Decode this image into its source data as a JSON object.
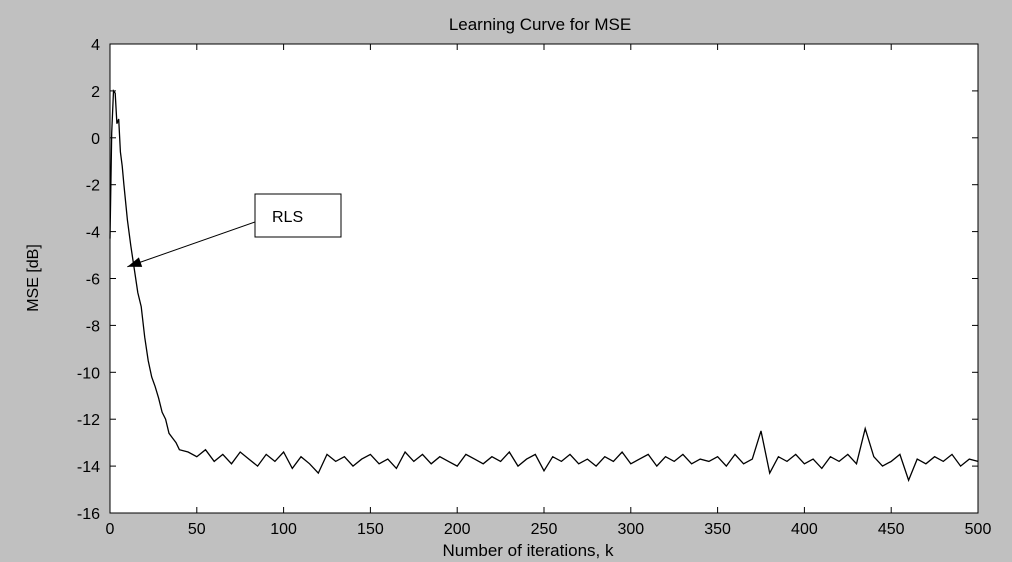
{
  "figure": {
    "background_color": "#c0c0c0",
    "axes_color": "#ffffff",
    "line_color": "#000000"
  },
  "chart_data": {
    "type": "line",
    "title": "Learning Curve for MSE",
    "xlabel": "Number of iterations, k",
    "ylabel": "MSE [dB]",
    "xlim": [
      0,
      500
    ],
    "ylim": [
      -16,
      4
    ],
    "xticks": [
      0,
      50,
      100,
      150,
      200,
      250,
      300,
      350,
      400,
      450,
      500
    ],
    "yticks": [
      4,
      2,
      0,
      -2,
      -4,
      -6,
      -8,
      -10,
      -12,
      -14,
      -16
    ],
    "grid": false,
    "series": [
      {
        "name": "RLS",
        "x": [
          0,
          1,
          2,
          3,
          4,
          5,
          6,
          7,
          8,
          10,
          12,
          14,
          16,
          18,
          20,
          22,
          24,
          26,
          28,
          30,
          32,
          34,
          36,
          38,
          40,
          45,
          50,
          55,
          60,
          65,
          70,
          75,
          80,
          85,
          90,
          95,
          100,
          105,
          110,
          115,
          120,
          125,
          130,
          135,
          140,
          145,
          150,
          155,
          160,
          165,
          170,
          175,
          180,
          185,
          190,
          195,
          200,
          205,
          210,
          215,
          220,
          225,
          230,
          235,
          240,
          245,
          250,
          255,
          260,
          265,
          270,
          275,
          280,
          285,
          290,
          295,
          300,
          305,
          310,
          315,
          320,
          325,
          330,
          335,
          340,
          345,
          350,
          355,
          360,
          365,
          370,
          375,
          380,
          385,
          390,
          395,
          400,
          405,
          410,
          415,
          420,
          425,
          430,
          435,
          440,
          445,
          450,
          455,
          460,
          465,
          470,
          475,
          480,
          485,
          490,
          495,
          500
        ],
        "y": [
          -4.3,
          0.2,
          2.0,
          1.9,
          0.6,
          0.8,
          -0.6,
          -1.2,
          -2.0,
          -3.5,
          -4.6,
          -5.6,
          -6.6,
          -7.2,
          -8.5,
          -9.5,
          -10.2,
          -10.6,
          -11.1,
          -11.7,
          -12.0,
          -12.6,
          -12.8,
          -13.0,
          -13.3,
          -13.4,
          -13.6,
          -13.3,
          -13.8,
          -13.5,
          -13.9,
          -13.4,
          -13.7,
          -14.0,
          -13.5,
          -13.8,
          -13.4,
          -14.1,
          -13.6,
          -13.9,
          -14.3,
          -13.5,
          -13.8,
          -13.6,
          -14.0,
          -13.7,
          -13.5,
          -13.9,
          -13.7,
          -14.1,
          -13.4,
          -13.8,
          -13.5,
          -13.9,
          -13.6,
          -13.8,
          -14.0,
          -13.5,
          -13.7,
          -13.9,
          -13.6,
          -13.8,
          -13.4,
          -14.0,
          -13.7,
          -13.5,
          -14.2,
          -13.6,
          -13.8,
          -13.5,
          -13.9,
          -13.7,
          -14.0,
          -13.6,
          -13.8,
          -13.4,
          -13.9,
          -13.7,
          -13.5,
          -14.0,
          -13.6,
          -13.8,
          -13.5,
          -13.9,
          -13.7,
          -13.8,
          -13.6,
          -14.0,
          -13.5,
          -13.9,
          -13.7,
          -12.5,
          -14.3,
          -13.6,
          -13.8,
          -13.5,
          -13.9,
          -13.7,
          -14.1,
          -13.6,
          -13.8,
          -13.5,
          -13.9,
          -12.4,
          -13.6,
          -14.0,
          -13.8,
          -13.5,
          -14.6,
          -13.7,
          -13.9,
          -13.6,
          -13.8,
          -13.5,
          -14.0,
          -13.7,
          -13.8
        ]
      }
    ],
    "annotations": [
      {
        "text": "RLS",
        "points_to": {
          "x": 10,
          "y": -5.5
        }
      }
    ]
  }
}
